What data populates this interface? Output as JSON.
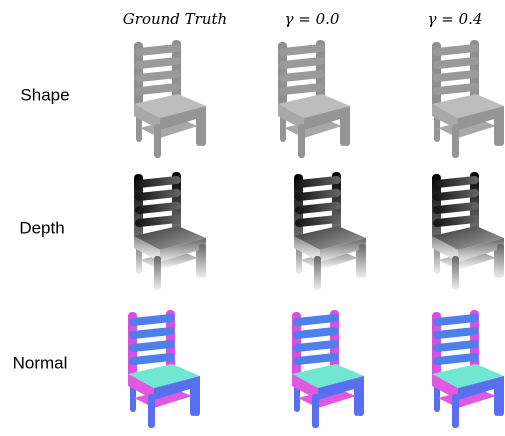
{
  "columns": [
    "Ground Truth",
    "γ = 0.0",
    "γ = 0.4"
  ],
  "rows": [
    "Shape",
    "Depth",
    "Normal"
  ]
}
